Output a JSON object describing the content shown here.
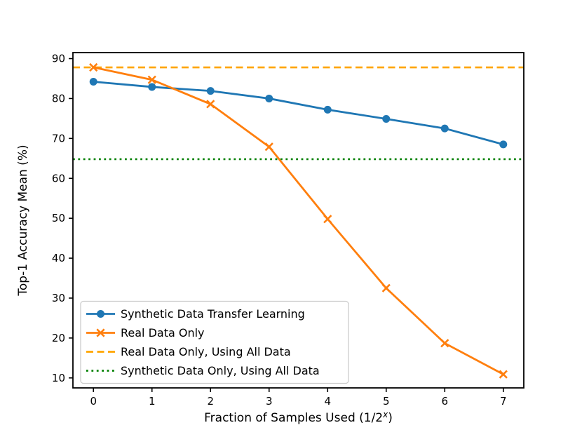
{
  "chart_data": {
    "type": "line",
    "title": "",
    "xlabel": {
      "prefix": "Fraction of Samples Used (1/2",
      "superscript": "x",
      "suffix": ")"
    },
    "ylabel": "Top-1 Accuracy Mean (%)",
    "x": [
      0,
      1,
      2,
      3,
      4,
      5,
      6,
      7
    ],
    "series": [
      {
        "name": "Synthetic Data Transfer Learning",
        "values": [
          84.2,
          82.9,
          81.9,
          80.0,
          77.2,
          74.9,
          72.5,
          68.5
        ],
        "color": "#1f77b4",
        "marker": "circle",
        "linestyle": "solid"
      },
      {
        "name": "Real Data Only",
        "values": [
          87.8,
          84.7,
          78.6,
          67.9,
          49.8,
          32.5,
          18.7,
          10.9
        ],
        "color": "#ff7f0e",
        "marker": "x",
        "linestyle": "solid"
      }
    ],
    "hlines": [
      {
        "name": "Real Data Only, Using All Data",
        "value": 87.8,
        "color": "#ffa500",
        "linestyle": "dashed"
      },
      {
        "name": "Synthetic Data Only, Using All Data",
        "value": 64.8,
        "color": "#008000",
        "linestyle": "dotted"
      }
    ],
    "x_ticks": [
      0,
      1,
      2,
      3,
      4,
      5,
      6,
      7
    ],
    "y_ticks": [
      10,
      20,
      30,
      40,
      50,
      60,
      70,
      80,
      90
    ],
    "xlim": [
      -0.35,
      7.35
    ],
    "ylim": [
      7.5,
      91.5
    ],
    "grid": false,
    "legend_position": "lower left",
    "axis_color": "#000000",
    "legend_border_color": "#cccccc"
  }
}
